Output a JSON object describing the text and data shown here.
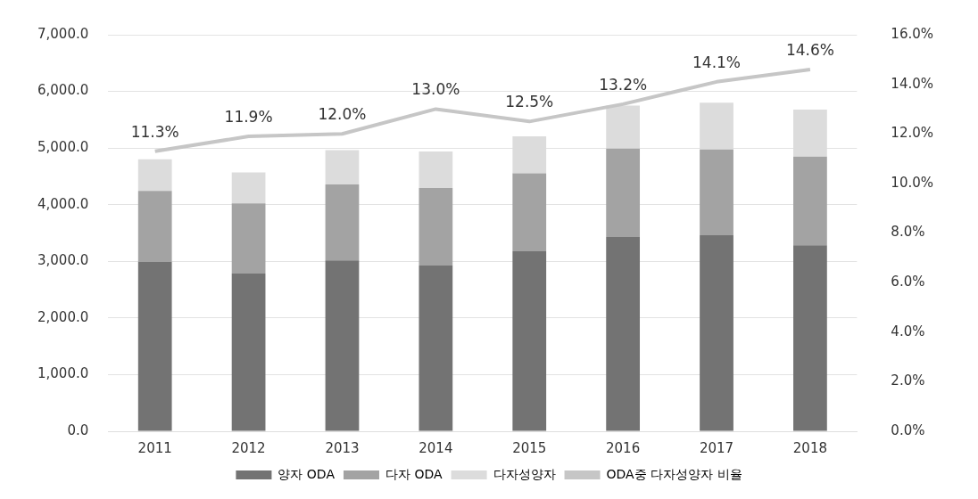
{
  "chart_data": {
    "type": "bar",
    "stacked": true,
    "categories": [
      "2011",
      "2012",
      "2013",
      "2014",
      "2015",
      "2016",
      "2017",
      "2018"
    ],
    "series": [
      {
        "name": "양자 ODA",
        "color": "#737373",
        "values": [
          2990,
          2783,
          3016,
          2924,
          3179,
          3429,
          3462,
          3283
        ]
      },
      {
        "name": "다자 ODA",
        "color": "#a3a3a3",
        "values": [
          1255,
          1239,
          1343,
          1369,
          1375,
          1560,
          1511,
          1565
        ]
      },
      {
        "name": "다자성양자",
        "color": "#dcdcdc",
        "values": [
          555,
          549,
          603,
          647,
          653,
          761,
          826,
          831
        ]
      },
      {
        "name": "ODA중 다자성양자 비율",
        "type": "line",
        "axis": "y2",
        "color": "#c6c6c6",
        "marker": "none",
        "values": [
          11.3,
          11.9,
          12.0,
          13.0,
          12.5,
          13.2,
          14.1,
          14.6
        ],
        "value_labels": [
          "11.3%",
          "11.9%",
          "12.0%",
          "13.0%",
          "12.5%",
          "13.2%",
          "14.1%",
          "14.6%"
        ]
      }
    ],
    "ylim": [
      0,
      7000
    ],
    "yticks": [
      {
        "value": 0,
        "label": "0.0"
      },
      {
        "value": 1000,
        "label": "1,000.0"
      },
      {
        "value": 2000,
        "label": "2,000.0"
      },
      {
        "value": 3000,
        "label": "3,000.0"
      },
      {
        "value": 4000,
        "label": "4,000.0"
      },
      {
        "value": 5000,
        "label": "5,000.0"
      },
      {
        "value": 6000,
        "label": "6,000.0"
      },
      {
        "value": 7000,
        "label": "7,000.0"
      }
    ],
    "y2lim": [
      0,
      16
    ],
    "y2ticks": [
      {
        "value": 0,
        "label": "0.0%"
      },
      {
        "value": 2,
        "label": "2.0%"
      },
      {
        "value": 4,
        "label": "4.0%"
      },
      {
        "value": 6,
        "label": "6.0%"
      },
      {
        "value": 8,
        "label": "8.0%"
      },
      {
        "value": 10,
        "label": "10.0%"
      },
      {
        "value": 12,
        "label": "12.0%"
      },
      {
        "value": 14,
        "label": "14.0%"
      },
      {
        "value": 16,
        "label": "16.0%"
      }
    ],
    "grid": "y",
    "legend": "bottom"
  }
}
